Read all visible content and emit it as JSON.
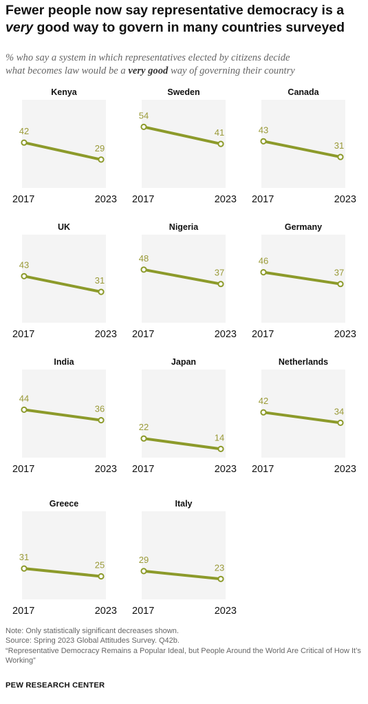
{
  "title_line1": "Fewer people now say representative democracy is a",
  "title_line2_em": "very",
  "title_line2_rest": " good way to govern in many countries surveyed",
  "subtitle_line1": "% who say a system in which representatives elected by citizens decide",
  "subtitle_line2_pre": "what becomes law would be a ",
  "subtitle_line2_bold": "very good",
  "subtitle_line2_post": " way of governing their country",
  "notes": [
    "Note: Only statistically significant decreases shown.",
    "Source: Spring 2023 Global Attitudes Survey. Q42b.",
    "“Representative Democracy Remains a Popular Ideal, but People Around the World Are Critical of How It’s Working”"
  ],
  "brand": "PEW RESEARCH CENTER",
  "colors": {
    "line": "#8c9a2a",
    "label": "#9a9a38",
    "panel_bg": "#f4f4f4"
  },
  "chart_data": {
    "type": "line",
    "x": [
      "2017",
      "2023"
    ],
    "panels": [
      {
        "country": "Kenya",
        "values": [
          42,
          29
        ]
      },
      {
        "country": "Sweden",
        "values": [
          54,
          41
        ]
      },
      {
        "country": "Canada",
        "values": [
          43,
          31
        ]
      },
      {
        "country": "UK",
        "values": [
          43,
          31
        ]
      },
      {
        "country": "Nigeria",
        "values": [
          48,
          37
        ]
      },
      {
        "country": "Germany",
        "values": [
          46,
          37
        ]
      },
      {
        "country": "India",
        "values": [
          44,
          36
        ]
      },
      {
        "country": "Japan",
        "values": [
          22,
          14
        ]
      },
      {
        "country": "Netherlands",
        "values": [
          42,
          34
        ]
      },
      {
        "country": "Greece",
        "values": [
          31,
          25
        ]
      },
      {
        "country": "Italy",
        "values": [
          29,
          23
        ]
      }
    ]
  }
}
